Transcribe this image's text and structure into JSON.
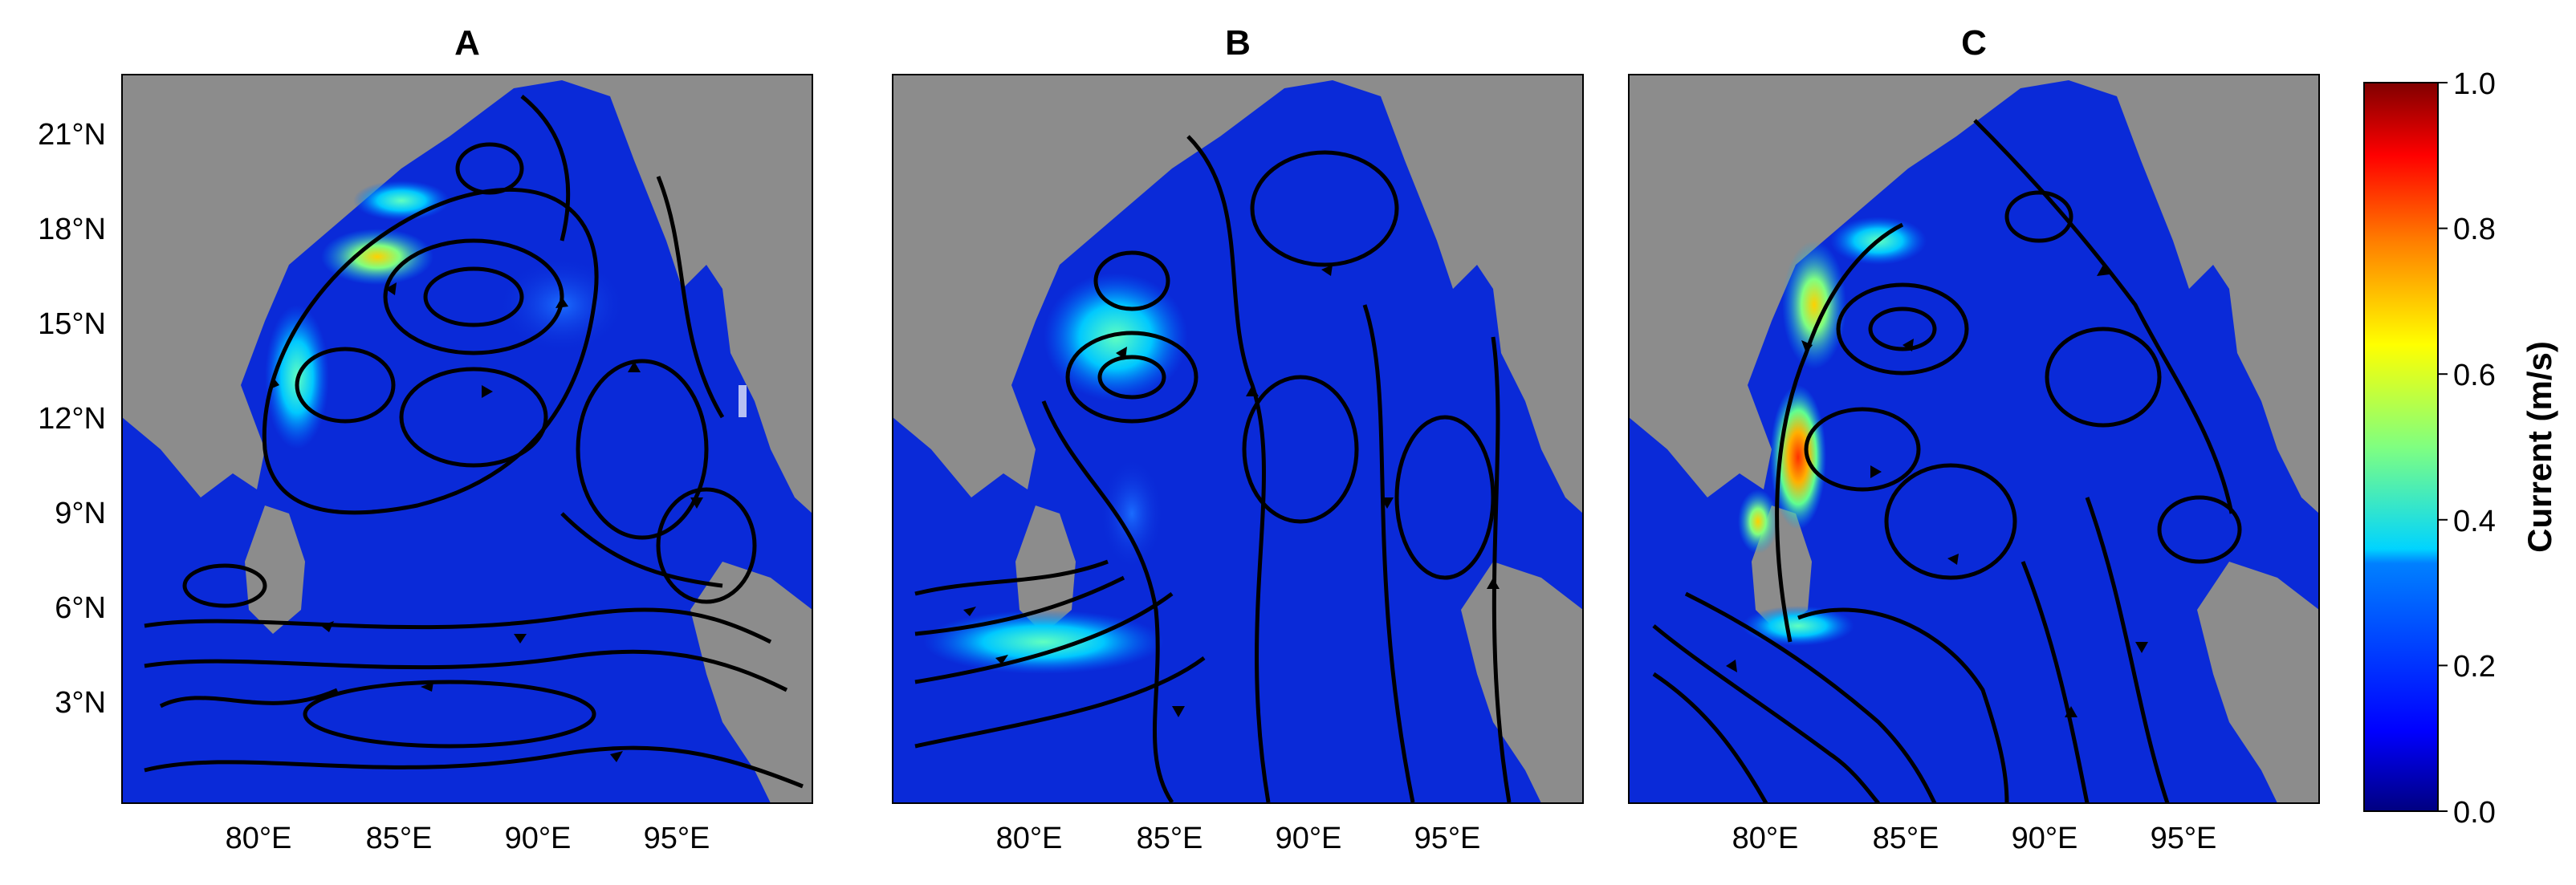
{
  "panels": [
    {
      "id": "A",
      "title": "A"
    },
    {
      "id": "B",
      "title": "B"
    },
    {
      "id": "C",
      "title": "C"
    }
  ],
  "axes": {
    "lat_labels": [
      "21°N",
      "18°N",
      "15°N",
      "12°N",
      "9°N",
      "6°N",
      "3°N"
    ],
    "lon_labels": [
      "80°E",
      "85°E",
      "90°E",
      "95°E"
    ]
  },
  "colorbar": {
    "label": "Current (m/s)",
    "ticks": [
      "1.0",
      "0.8",
      "0.6",
      "0.4",
      "0.2",
      "0.0"
    ],
    "colors": [
      "#000080",
      "#0000ff",
      "#0080ff",
      "#00ffff",
      "#80ff80",
      "#ffff00",
      "#ff8000",
      "#ff0000",
      "#800000"
    ]
  },
  "colors": {
    "land": "#8c8c8c",
    "ocean_base": "#0a2ad8",
    "streamline": "#000000"
  }
}
